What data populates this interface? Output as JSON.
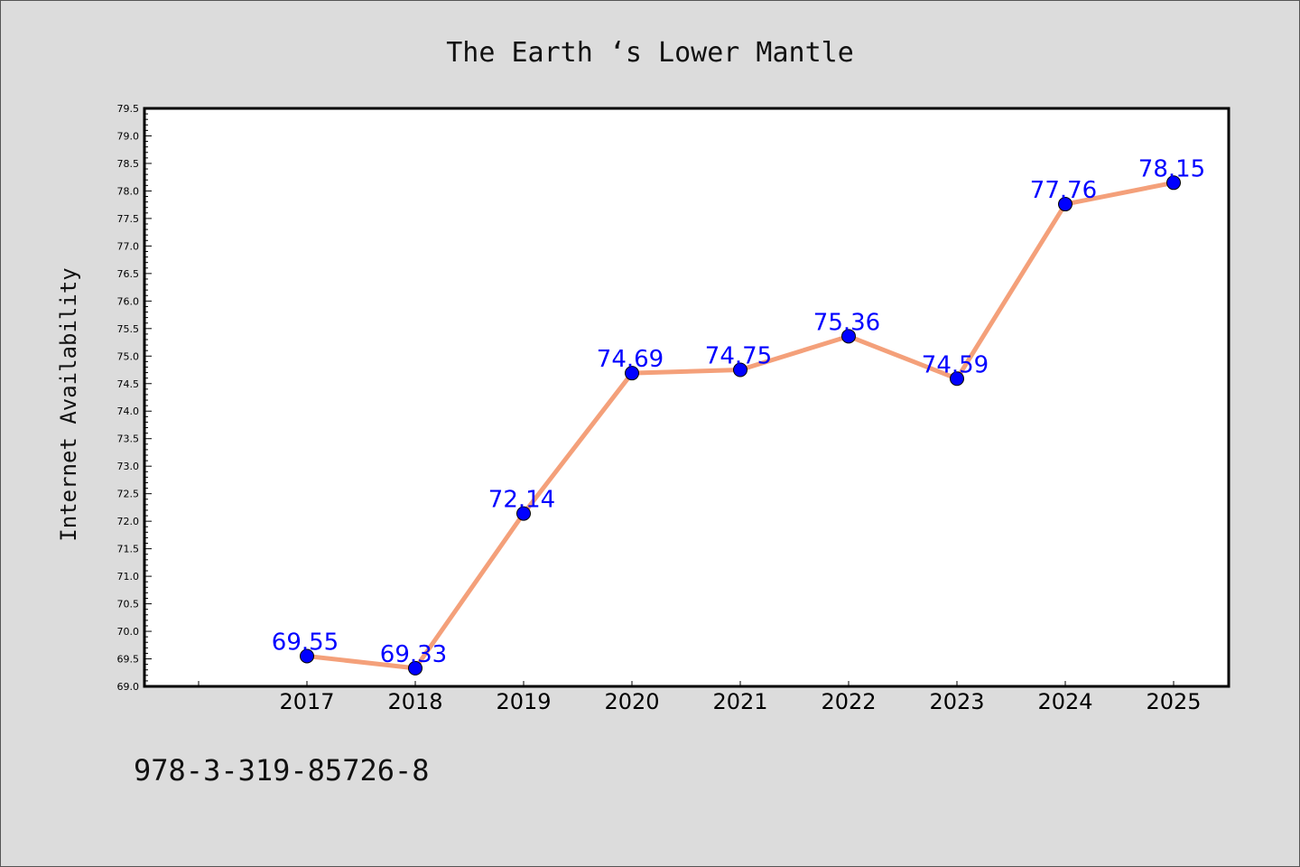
{
  "chart_data": {
    "type": "line",
    "title": "The Earth ‘s Lower Mantle",
    "xlabel": "",
    "ylabel": "Internet Availability",
    "categories": [
      "2017",
      "2018",
      "2019",
      "2020",
      "2021",
      "2022",
      "2023",
      "2024",
      "2025"
    ],
    "values": [
      69.55,
      69.33,
      72.14,
      74.69,
      74.75,
      75.36,
      74.59,
      77.76,
      78.15
    ],
    "data_labels": [
      "69.55",
      "69.33",
      "72.14",
      "74.69",
      "74.75",
      "75.36",
      "74.59",
      "77.76",
      "78.15"
    ],
    "ylim": [
      69.0,
      79.5
    ],
    "yticks": [
      "69.0",
      "69.5",
      "70.0",
      "70.5",
      "71.0",
      "71.5",
      "72.0",
      "72.5",
      "73.0",
      "73.5",
      "74.0",
      "74.5",
      "75.0",
      "75.5",
      "76.0",
      "76.5",
      "77.0",
      "77.5",
      "78.0",
      "78.5",
      "79.0",
      "79.5"
    ],
    "grid": false,
    "legend": "none",
    "line_color": "#f4a07a",
    "marker_color": "#0000ff",
    "label_color": "#0000ff"
  },
  "footnote": "978-3-319-85726-8"
}
